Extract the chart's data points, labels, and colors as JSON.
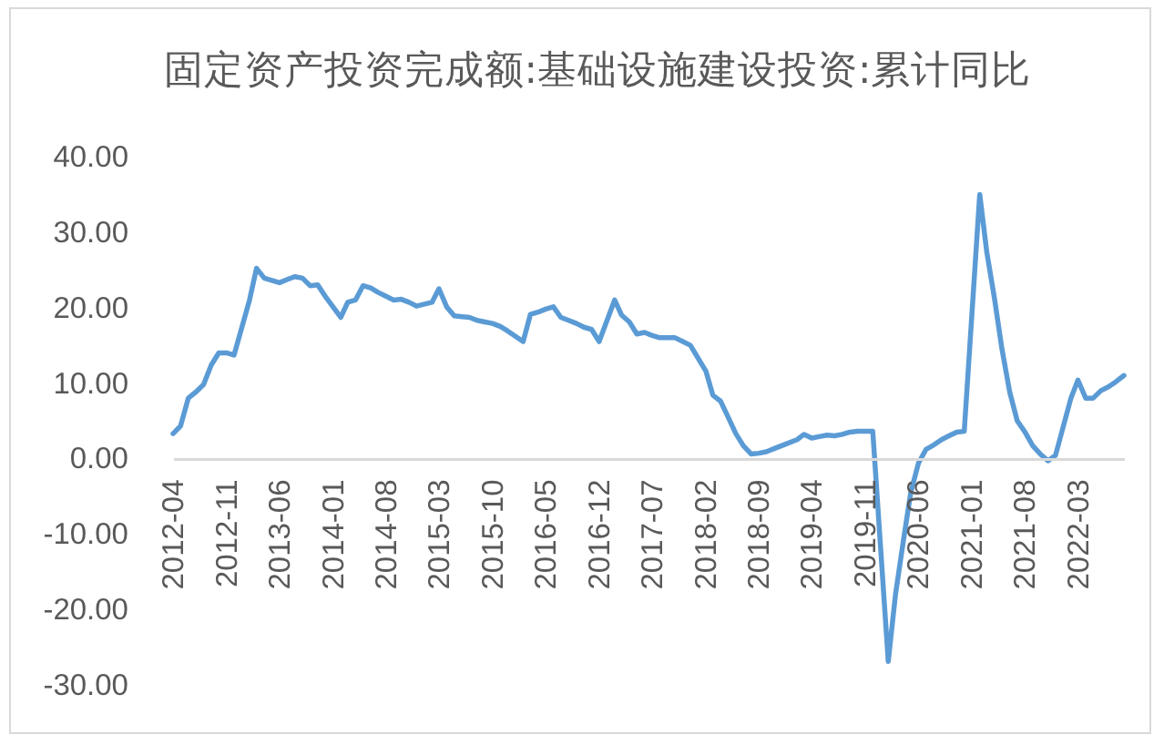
{
  "chart_data": {
    "type": "line",
    "title": "固定资产投资完成额:基础设施建设投资:累计同比",
    "x": [
      "2012-04",
      "2012-05",
      "2012-06",
      "2012-07",
      "2012-08",
      "2012-09",
      "2012-10",
      "2012-11",
      "2012-12",
      "2013-02",
      "2013-03",
      "2013-04",
      "2013-05",
      "2013-06",
      "2013-07",
      "2013-08",
      "2013-09",
      "2013-10",
      "2013-11",
      "2013-12",
      "2014-02",
      "2014-03",
      "2014-04",
      "2014-05",
      "2014-06",
      "2014-07",
      "2014-08",
      "2014-09",
      "2014-10",
      "2014-11",
      "2014-12",
      "2015-02",
      "2015-03",
      "2015-04",
      "2015-05",
      "2015-06",
      "2015-07",
      "2015-08",
      "2015-09",
      "2015-10",
      "2015-11",
      "2015-12",
      "2016-02",
      "2016-03",
      "2016-04",
      "2016-05",
      "2016-06",
      "2016-07",
      "2016-08",
      "2016-09",
      "2016-10",
      "2016-11",
      "2016-12",
      "2017-02",
      "2017-03",
      "2017-04",
      "2017-05",
      "2017-06",
      "2017-07",
      "2017-08",
      "2017-09",
      "2017-10",
      "2017-11",
      "2017-12",
      "2018-02",
      "2018-03",
      "2018-04",
      "2018-05",
      "2018-06",
      "2018-07",
      "2018-08",
      "2018-09",
      "2018-10",
      "2018-11",
      "2018-12",
      "2019-02",
      "2019-03",
      "2019-04",
      "2019-05",
      "2019-06",
      "2019-07",
      "2019-08",
      "2019-09",
      "2019-10",
      "2019-11",
      "2019-12",
      "2020-02",
      "2020-03",
      "2020-04",
      "2020-05",
      "2020-06",
      "2020-07",
      "2020-08",
      "2020-09",
      "2020-10",
      "2020-11",
      "2020-12",
      "2021-02",
      "2021-03",
      "2021-04",
      "2021-05",
      "2021-06",
      "2021-07",
      "2021-08",
      "2021-09",
      "2021-10",
      "2021-11",
      "2021-12",
      "2022-02",
      "2022-03",
      "2022-04",
      "2022-05",
      "2022-06",
      "2022-07",
      "2022-08",
      "2022-09"
    ],
    "values": [
      3.3,
      4.3,
      8.0,
      8.8,
      9.8,
      12.4,
      14.0,
      14.0,
      13.7,
      21.0,
      25.2,
      23.9,
      23.6,
      23.3,
      23.7,
      24.1,
      23.9,
      22.9,
      23.0,
      21.5,
      18.7,
      20.7,
      21.0,
      22.9,
      22.6,
      22.0,
      21.5,
      21.0,
      21.1,
      20.7,
      20.2,
      20.7,
      22.5,
      20.1,
      18.9,
      18.8,
      18.7,
      18.3,
      18.1,
      17.9,
      17.5,
      16.9,
      15.5,
      19.1,
      19.4,
      19.8,
      20.1,
      18.7,
      18.3,
      17.9,
      17.4,
      17.1,
      15.5,
      21.0,
      19.0,
      18.1,
      16.5,
      16.7,
      16.3,
      16.0,
      16.0,
      16.0,
      15.5,
      15.0,
      11.6,
      8.4,
      7.6,
      5.5,
      3.3,
      1.7,
      0.6,
      0.7,
      0.9,
      1.3,
      1.7,
      2.5,
      3.2,
      2.7,
      2.9,
      3.1,
      3.0,
      3.2,
      3.5,
      3.6,
      3.6,
      3.6,
      -26.9,
      -18.0,
      -11.0,
      -4.5,
      -0.6,
      1.2,
      1.8,
      2.5,
      3.0,
      3.5,
      3.6,
      35.0,
      27.4,
      21.2,
      14.5,
      8.8,
      5.0,
      3.5,
      1.7,
      0.6,
      -0.3,
      0.4,
      8.0,
      10.4,
      8.0,
      8.0,
      9.0,
      9.5,
      10.2,
      11.0
    ],
    "color": "#5b9bd5",
    "xlim": [
      "2012-04",
      "2022-09"
    ],
    "xticks": [
      "2012-04",
      "2012-11",
      "2013-06",
      "2014-01",
      "2014-08",
      "2015-03",
      "2015-10",
      "2016-05",
      "2016-12",
      "2017-07",
      "2018-02",
      "2018-09",
      "2019-04",
      "2019-11",
      "2020-06",
      "2021-01",
      "2021-08",
      "2022-03"
    ],
    "ylim": [
      -30,
      40
    ],
    "yticks": [
      {
        "value": -30,
        "label": "-30.00"
      },
      {
        "value": -20,
        "label": "-20.00"
      },
      {
        "value": -10,
        "label": "-10.00"
      },
      {
        "value": 0,
        "label": "0.00"
      },
      {
        "value": 10,
        "label": "10.00"
      },
      {
        "value": 20,
        "label": "20.00"
      },
      {
        "value": 30,
        "label": "30.00"
      },
      {
        "value": 40,
        "label": "40.00"
      }
    ]
  }
}
